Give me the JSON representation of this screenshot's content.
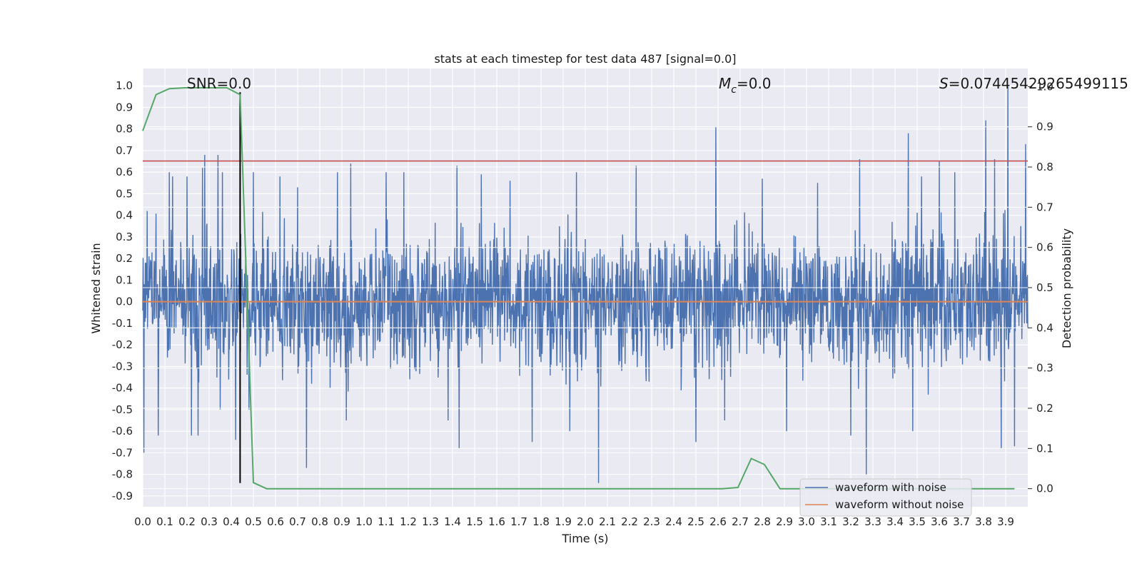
{
  "chart_data": {
    "type": "line",
    "title": "stats at each timestep for test data 487 [signal=0.0]",
    "xlabel": "Time (s)",
    "ylabel": "Whitened strain",
    "y2label": "Detection probability",
    "xlim": [
      0.0,
      4.0
    ],
    "ylim": [
      -0.95,
      1.08
    ],
    "y2lim": [
      -0.045,
      1.045
    ],
    "x_ticks": [
      "0.0",
      "0.1",
      "0.2",
      "0.3",
      "0.4",
      "0.5",
      "0.6",
      "0.7",
      "0.8",
      "0.9",
      "1.0",
      "1.1",
      "1.2",
      "1.3",
      "1.4",
      "1.5",
      "1.6",
      "1.7",
      "1.8",
      "1.9",
      "2.0",
      "2.1",
      "2.2",
      "2.3",
      "2.4",
      "2.5",
      "2.6",
      "2.7",
      "2.8",
      "2.9",
      "3.0",
      "3.1",
      "3.2",
      "3.3",
      "3.4",
      "3.5",
      "3.6",
      "3.7",
      "3.8",
      "3.9"
    ],
    "y_ticks": [
      "-0.9",
      "-0.8",
      "-0.7",
      "-0.6",
      "-0.5",
      "-0.4",
      "-0.3",
      "-0.2",
      "-0.1",
      "0.0",
      "0.1",
      "0.2",
      "0.3",
      "0.4",
      "0.5",
      "0.6",
      "0.7",
      "0.8",
      "0.9",
      "1.0"
    ],
    "y2_ticks": [
      "0.0",
      "0.1",
      "0.2",
      "0.3",
      "0.4",
      "0.5",
      "0.6",
      "0.7",
      "0.8",
      "0.9",
      "1.0"
    ],
    "grid": true,
    "legend_placement": "lower right",
    "annotations": {
      "snr": "SNR=0.0",
      "mc_symbol": "M",
      "mc_sub": "c",
      "mc_value": "=0.0",
      "s_symbol": "S",
      "s_value": "=0.07445429265499115"
    },
    "series": [
      {
        "name": "waveform with noise",
        "color": "#4c72b0",
        "axis": "left",
        "description": "whitened noise, roughly uniform amplitude",
        "amplitude_typical": 0.28,
        "peaks": [
          [
            0.005,
            -0.7
          ],
          [
            0.02,
            0.42
          ],
          [
            0.07,
            -0.62
          ],
          [
            0.12,
            0.6
          ],
          [
            0.135,
            0.58
          ],
          [
            0.2,
            0.58
          ],
          [
            0.22,
            -0.62
          ],
          [
            0.25,
            -0.62
          ],
          [
            0.27,
            0.62
          ],
          [
            0.28,
            0.68
          ],
          [
            0.34,
            0.68
          ],
          [
            0.35,
            -0.5
          ],
          [
            0.36,
            0.6
          ],
          [
            0.42,
            0.52
          ],
          [
            0.42,
            -0.64
          ],
          [
            0.44,
            0.97
          ],
          [
            0.48,
            -0.5
          ],
          [
            0.5,
            0.6
          ],
          [
            0.62,
            0.58
          ],
          [
            0.7,
            0.53
          ],
          [
            0.74,
            -0.77
          ],
          [
            0.88,
            0.6
          ],
          [
            0.92,
            -0.55
          ],
          [
            0.94,
            0.64
          ],
          [
            1.1,
            0.6
          ],
          [
            1.18,
            0.6
          ],
          [
            1.38,
            -0.55
          ],
          [
            1.42,
            0.63
          ],
          [
            1.43,
            -0.68
          ],
          [
            1.53,
            0.59
          ],
          [
            1.66,
            0.56
          ],
          [
            1.76,
            -0.65
          ],
          [
            1.93,
            -0.6
          ],
          [
            1.96,
            0.6
          ],
          [
            2.06,
            0.65
          ],
          [
            2.06,
            -0.84
          ],
          [
            2.23,
            0.63
          ],
          [
            2.5,
            -0.65
          ],
          [
            2.59,
            0.81
          ],
          [
            2.63,
            -0.55
          ],
          [
            2.8,
            0.57
          ],
          [
            2.91,
            -0.6
          ],
          [
            3.05,
            0.55
          ],
          [
            3.2,
            -0.62
          ],
          [
            3.24,
            0.66
          ],
          [
            3.27,
            -0.8
          ],
          [
            3.46,
            0.78
          ],
          [
            3.48,
            -0.6
          ],
          [
            3.52,
            0.58
          ],
          [
            3.6,
            0.65
          ],
          [
            3.67,
            0.6
          ],
          [
            3.81,
            0.84
          ],
          [
            3.85,
            0.66
          ],
          [
            3.88,
            -0.68
          ],
          [
            3.91,
            1.0
          ],
          [
            3.94,
            -0.67
          ],
          [
            3.99,
            0.73
          ]
        ]
      },
      {
        "name": "waveform without noise",
        "color": "#dd8452",
        "axis": "left",
        "x": [
          0.0,
          4.0
        ],
        "y": [
          0.0,
          0.0
        ]
      },
      {
        "name": "",
        "color": "#55a868",
        "axis": "right",
        "x": [
          0.0,
          0.06,
          0.12,
          0.19,
          0.25,
          0.31,
          0.38,
          0.44,
          0.5,
          0.56,
          0.62,
          0.69,
          0.75,
          2.62,
          2.69,
          2.75,
          2.81,
          2.88,
          2.94,
          3.0,
          3.94
        ],
        "y": [
          0.89,
          0.98,
          0.995,
          0.997,
          0.997,
          0.997,
          0.997,
          0.98,
          0.015,
          0.0,
          0.0,
          0.0,
          0.0,
          0.0,
          0.003,
          0.075,
          0.06,
          0.0,
          0.0,
          0.0,
          0.0
        ]
      }
    ],
    "threshold": {
      "color": "#c44e52",
      "y": 0.815
    },
    "marker_line": {
      "color": "#000000",
      "x": 0.44,
      "y_range": [
        -0.84,
        0.97
      ]
    }
  }
}
